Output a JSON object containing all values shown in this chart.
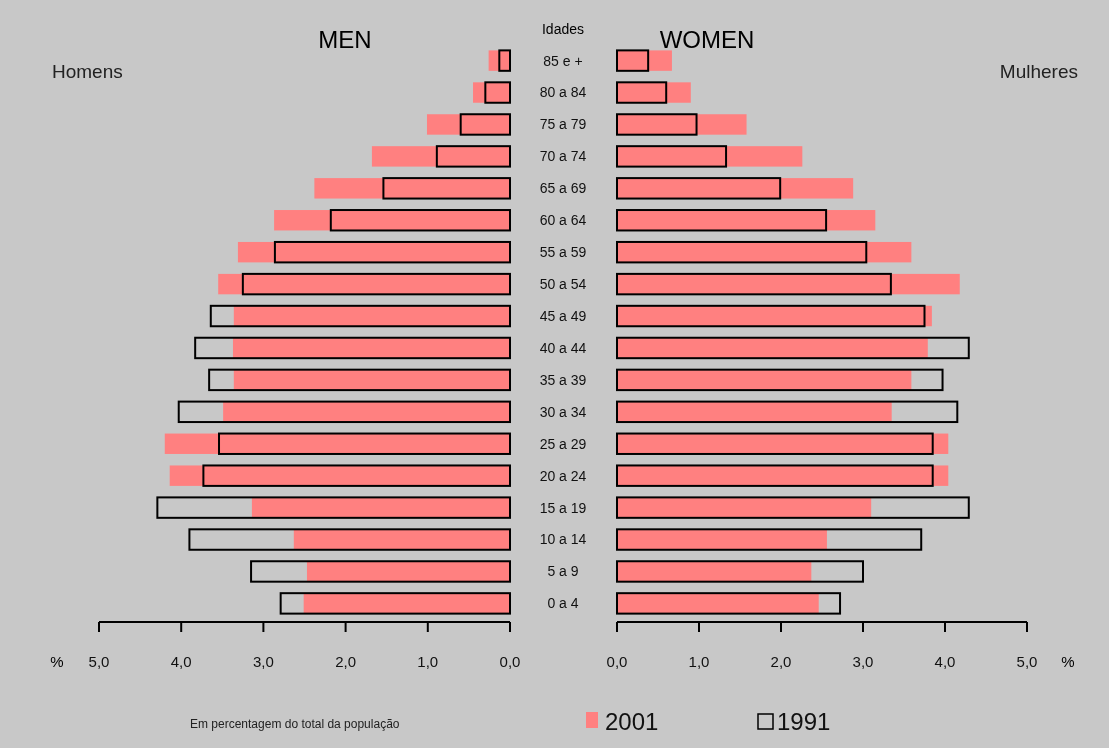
{
  "chart_data": [
    {
      "type": "bar",
      "orientation": "horizontal",
      "title": "MEN",
      "ylabel": "Idades",
      "xlabel": "%",
      "annotations": [
        "Homens",
        "Em percentagem do total da população"
      ],
      "categories": [
        "85 e +",
        "80 a 84",
        "75 a 79",
        "70 a 74",
        "65 a 69",
        "60 a 64",
        "55 a 59",
        "50 a 54",
        "45 a 49",
        "40 a 44",
        "35 a 39",
        "30 a 34",
        "25 a 29",
        "20 a 24",
        "15 a 19",
        "10 a 14",
        "5 a 9",
        "0 a 4"
      ],
      "series": [
        {
          "name": "2001",
          "color": "#ff8080",
          "values": [
            0.26,
            0.45,
            1.01,
            1.68,
            2.38,
            2.87,
            3.31,
            3.55,
            3.36,
            3.37,
            3.36,
            3.49,
            4.2,
            4.14,
            3.14,
            2.63,
            2.47,
            2.51
          ]
        },
        {
          "name": "1991",
          "color": "#000000",
          "values": [
            0.13,
            0.3,
            0.6,
            0.89,
            1.54,
            2.18,
            2.86,
            3.25,
            3.64,
            3.83,
            3.66,
            4.03,
            3.54,
            3.73,
            4.29,
            3.9,
            3.15,
            2.79
          ]
        }
      ],
      "xlim": [
        5,
        0
      ],
      "xticks": [
        {
          "value": 5,
          "label": "5,0"
        },
        {
          "value": 4,
          "label": "4,0"
        },
        {
          "value": 3,
          "label": "3,0"
        },
        {
          "value": 2,
          "label": "2,0"
        },
        {
          "value": 1,
          "label": "1,0"
        },
        {
          "value": 0,
          "label": "0,0"
        }
      ],
      "legend": "bottom"
    },
    {
      "type": "bar",
      "orientation": "horizontal",
      "title": "WOMEN",
      "xlabel": "%",
      "annotations": [
        "Mulheres"
      ],
      "tick_labels": "x",
      "categories": [
        "85 e +",
        "80 a 84",
        "75 a 79",
        "70 a 74",
        "65 a 69",
        "60 a 64",
        "55 a 59",
        "50 a 54",
        "45 a 49",
        "40 a 44",
        "35 a 39",
        "30 a 34",
        "25 a 29",
        "20 a 24",
        "15 a 19",
        "10 a 14",
        "5 a 9",
        "0 a 4"
      ],
      "series": [
        {
          "color": "#ff8080",
          "values": [
            0.67,
            0.9,
            1.58,
            2.26,
            2.88,
            3.15,
            3.59,
            4.18,
            3.84,
            3.79,
            3.59,
            3.35,
            4.04,
            4.04,
            3.1,
            2.56,
            2.37,
            2.46
          ]
        },
        {
          "color": "#000000",
          "values": [
            0.38,
            0.6,
            0.97,
            1.33,
            1.99,
            2.55,
            3.04,
            3.34,
            3.75,
            4.29,
            3.97,
            4.15,
            3.85,
            3.85,
            4.29,
            3.71,
            3,
            2.72
          ]
        }
      ],
      "xlim": [
        0,
        5
      ],
      "xticks": [
        {
          "value": 0,
          "label": "0,0"
        },
        {
          "value": 1,
          "label": "1,0"
        },
        {
          "value": 2,
          "label": "2,0"
        },
        {
          "value": 3,
          "label": "3,0"
        },
        {
          "value": 4,
          "label": "4,0"
        },
        {
          "value": 5,
          "label": "5,0"
        }
      ]
    }
  ]
}
